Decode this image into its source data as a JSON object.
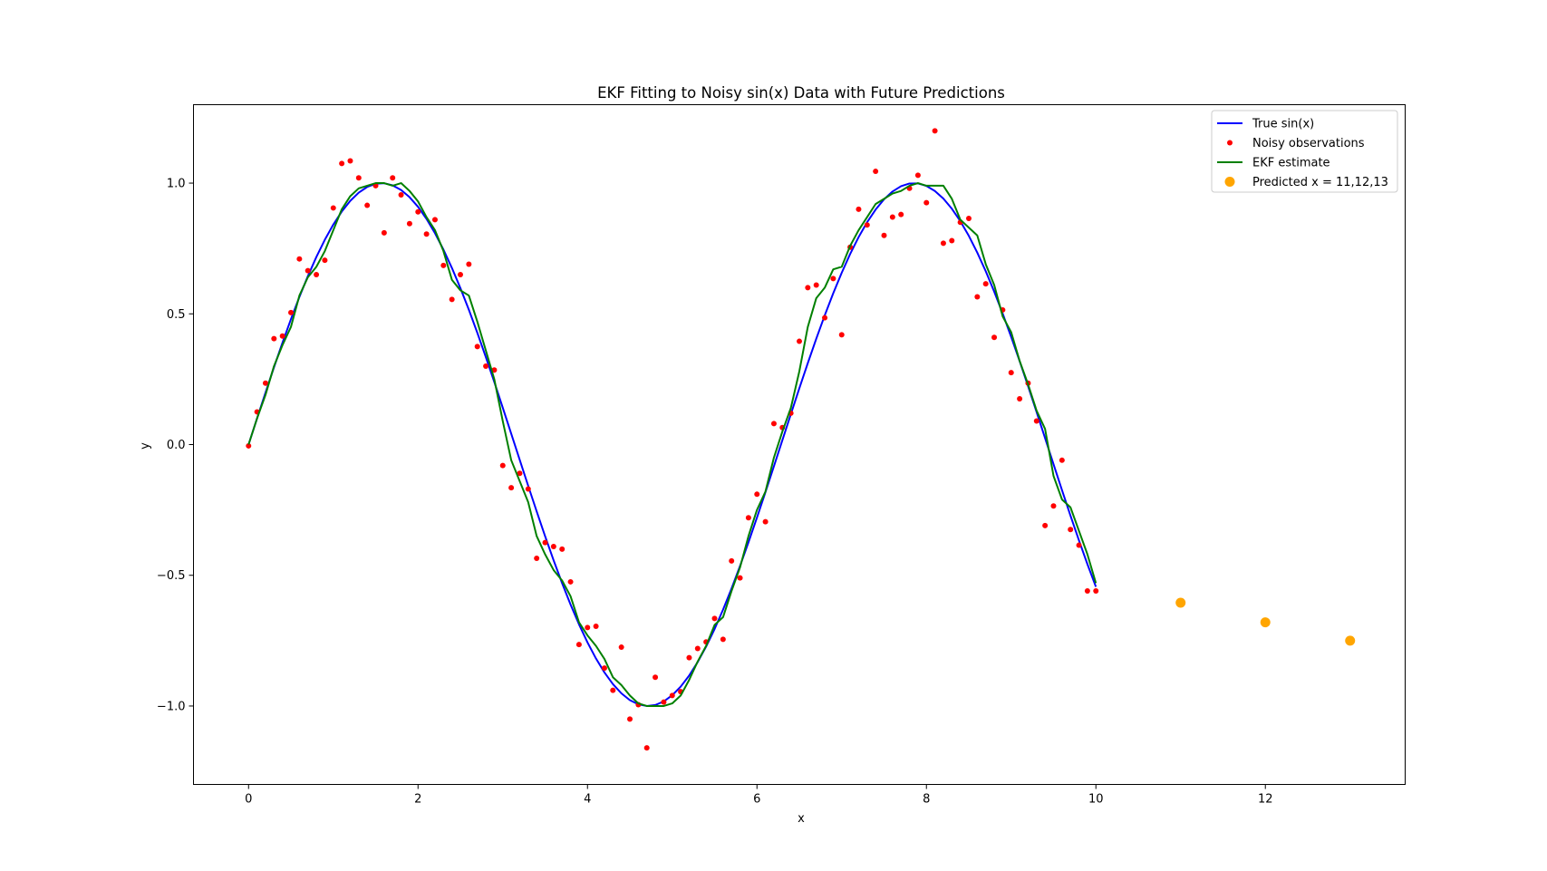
{
  "chart_data": {
    "type": "line",
    "title": "EKF Fitting to Noisy sin(x) Data with Future Predictions",
    "xlabel": "x",
    "ylabel": "y",
    "xlim": [
      -0.65,
      13.65
    ],
    "ylim": [
      -1.3,
      1.3
    ],
    "xticks": [
      0,
      2,
      4,
      6,
      8,
      10,
      12
    ],
    "xtick_labels": [
      "0",
      "2",
      "4",
      "6",
      "8",
      "10",
      "12"
    ],
    "yticks": [
      -1.0,
      -0.5,
      0.0,
      0.5,
      1.0
    ],
    "ytick_labels": [
      "−1.0",
      "−0.5",
      "0.0",
      "0.5",
      "1.0"
    ],
    "grid": false,
    "legend_position": "top-right",
    "series": [
      {
        "name": "True sin(x)",
        "kind": "line",
        "color": "#0000ff",
        "function": "sin",
        "x_range": [
          0,
          10
        ],
        "samples": 101
      },
      {
        "name": "Noisy observations",
        "kind": "scatter",
        "color": "#ff0000",
        "x": [
          0.0,
          0.1,
          0.2,
          0.3,
          0.4,
          0.5,
          0.6,
          0.7,
          0.8,
          0.9,
          1.0,
          1.1,
          1.2,
          1.3,
          1.4,
          1.5,
          1.6,
          1.7,
          1.8,
          1.9,
          2.0,
          2.1,
          2.2,
          2.3,
          2.4,
          2.5,
          2.6,
          2.7,
          2.8,
          2.9,
          3.0,
          3.1,
          3.2,
          3.3,
          3.4,
          3.5,
          3.6,
          3.7,
          3.8,
          3.9,
          4.0,
          4.1,
          4.2,
          4.3,
          4.4,
          4.5,
          4.6,
          4.7,
          4.8,
          4.9,
          5.0,
          5.1,
          5.2,
          5.3,
          5.4,
          5.5,
          5.6,
          5.7,
          5.8,
          5.9,
          6.0,
          6.1,
          6.2,
          6.3,
          6.4,
          6.5,
          6.6,
          6.7,
          6.8,
          6.9,
          7.0,
          7.1,
          7.2,
          7.3,
          7.4,
          7.5,
          7.6,
          7.7,
          7.8,
          7.9,
          8.0,
          8.1,
          8.2,
          8.3,
          8.4,
          8.5,
          8.6,
          8.7,
          8.8,
          8.9,
          9.0,
          9.1,
          9.2,
          9.3,
          9.4,
          9.5,
          9.6,
          9.7,
          9.8,
          9.9,
          10.0
        ],
        "y": [
          -0.005,
          0.125,
          0.235,
          0.405,
          0.415,
          0.505,
          0.71,
          0.665,
          0.65,
          0.705,
          0.905,
          1.075,
          1.085,
          1.02,
          0.915,
          0.99,
          0.81,
          1.02,
          0.955,
          0.845,
          0.89,
          0.805,
          0.86,
          0.685,
          0.555,
          0.65,
          0.69,
          0.375,
          0.3,
          0.285,
          -0.08,
          -0.165,
          -0.11,
          -0.17,
          -0.435,
          -0.375,
          -0.39,
          -0.4,
          -0.525,
          -0.765,
          -0.7,
          -0.695,
          -0.855,
          -0.94,
          -0.775,
          -1.05,
          -0.995,
          -1.16,
          -0.89,
          -0.985,
          -0.96,
          -0.945,
          -0.815,
          -0.78,
          -0.755,
          -0.665,
          -0.745,
          -0.445,
          -0.51,
          -0.28,
          -0.19,
          -0.295,
          0.08,
          0.065,
          0.12,
          0.395,
          0.6,
          0.61,
          0.485,
          0.635,
          0.42,
          0.755,
          0.9,
          0.84,
          1.045,
          0.8,
          0.87,
          0.88,
          0.98,
          1.03,
          0.925,
          1.2,
          0.77,
          0.78,
          0.85,
          0.865,
          0.565,
          0.615,
          0.41,
          0.515,
          0.275,
          0.175,
          0.235,
          0.09,
          -0.31,
          -0.235,
          -0.06,
          -0.325,
          -0.385,
          -0.56,
          -0.56
        ]
      },
      {
        "name": "EKF estimate",
        "kind": "line",
        "color": "#008000",
        "x": [
          0.0,
          0.1,
          0.2,
          0.3,
          0.4,
          0.5,
          0.6,
          0.7,
          0.8,
          0.9,
          1.0,
          1.1,
          1.2,
          1.3,
          1.4,
          1.5,
          1.6,
          1.7,
          1.8,
          1.9,
          2.0,
          2.1,
          2.2,
          2.3,
          2.4,
          2.5,
          2.6,
          2.7,
          2.8,
          2.9,
          3.0,
          3.1,
          3.2,
          3.3,
          3.4,
          3.5,
          3.6,
          3.7,
          3.8,
          3.9,
          4.0,
          4.1,
          4.2,
          4.3,
          4.4,
          4.5,
          4.6,
          4.7,
          4.8,
          4.9,
          5.0,
          5.1,
          5.2,
          5.3,
          5.4,
          5.5,
          5.6,
          5.7,
          5.8,
          5.9,
          6.0,
          6.1,
          6.2,
          6.3,
          6.4,
          6.5,
          6.6,
          6.7,
          6.8,
          6.9,
          7.0,
          7.1,
          7.2,
          7.3,
          7.4,
          7.5,
          7.6,
          7.7,
          7.8,
          7.9,
          8.0,
          8.1,
          8.2,
          8.3,
          8.4,
          8.5,
          8.6,
          8.7,
          8.8,
          8.9,
          9.0,
          9.1,
          9.2,
          9.3,
          9.4,
          9.5,
          9.6,
          9.7,
          9.8,
          9.9,
          10.0
        ],
        "y": [
          0.0,
          0.1,
          0.19,
          0.3,
          0.38,
          0.45,
          0.57,
          0.64,
          0.68,
          0.74,
          0.82,
          0.9,
          0.95,
          0.98,
          0.99,
          1.0,
          1.0,
          0.99,
          1.0,
          0.97,
          0.93,
          0.87,
          0.82,
          0.74,
          0.63,
          0.59,
          0.57,
          0.47,
          0.36,
          0.25,
          0.09,
          -0.06,
          -0.14,
          -0.22,
          -0.35,
          -0.42,
          -0.48,
          -0.52,
          -0.58,
          -0.68,
          -0.73,
          -0.77,
          -0.82,
          -0.89,
          -0.92,
          -0.96,
          -0.99,
          -1.0,
          -1.0,
          -1.0,
          -0.99,
          -0.96,
          -0.9,
          -0.83,
          -0.77,
          -0.69,
          -0.66,
          -0.56,
          -0.47,
          -0.35,
          -0.25,
          -0.18,
          -0.05,
          0.05,
          0.14,
          0.28,
          0.45,
          0.56,
          0.6,
          0.67,
          0.68,
          0.76,
          0.82,
          0.87,
          0.92,
          0.94,
          0.96,
          0.97,
          0.99,
          1.0,
          0.99,
          0.99,
          0.99,
          0.94,
          0.86,
          0.83,
          0.8,
          0.69,
          0.61,
          0.49,
          0.43,
          0.32,
          0.23,
          0.13,
          0.06,
          -0.12,
          -0.21,
          -0.24,
          -0.33,
          -0.42,
          -0.53
        ]
      },
      {
        "name": "Predicted x = 11,12,13",
        "kind": "scatter",
        "color": "#ffa500",
        "x": [
          11,
          12,
          13
        ],
        "y": [
          -0.605,
          -0.68,
          -0.75
        ]
      }
    ]
  }
}
